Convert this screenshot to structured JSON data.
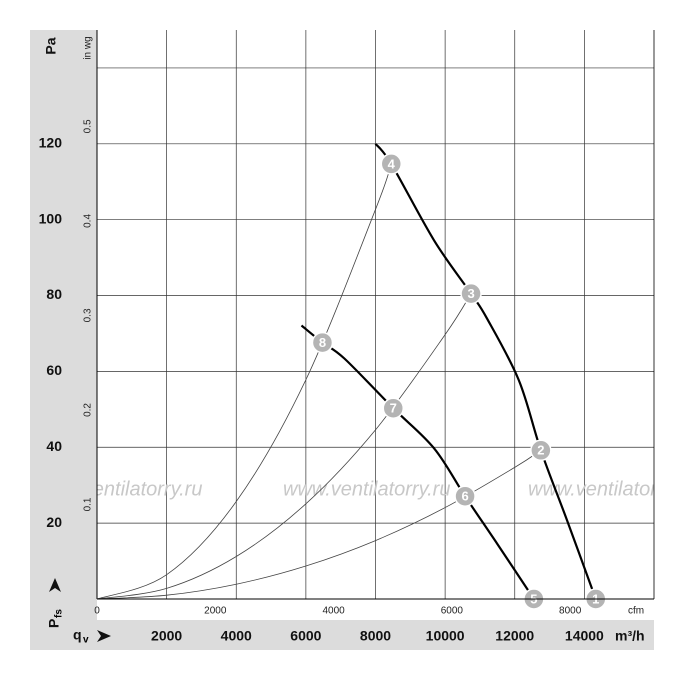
{
  "chart_data": {
    "type": "line",
    "y_label": {
      "main": "P",
      "sub": "fs"
    },
    "x_label": {
      "main": "q",
      "sub": "v"
    },
    "y_unit": "Pa",
    "y2_unit": "in wg",
    "x_unit": "m³/h",
    "x2_unit": "cfm",
    "watermark": "www.ventilatorry.ru",
    "xlim": [
      0,
      16000
    ],
    "xticks": [
      2000,
      4000,
      6000,
      8000,
      10000,
      12000,
      14000
    ],
    "ylim": [
      0,
      150
    ],
    "yticks": [
      20,
      40,
      60,
      80,
      100,
      120,
      {
        "value": 140,
        "label": null
      }
    ],
    "x2lim": [
      0,
      9417
    ],
    "x2ticks": [
      0,
      2000,
      4000,
      6000,
      8000
    ],
    "y2lim": [
      0,
      0.602
    ],
    "y2ticks": [
      0.1,
      0.2,
      0.3,
      0.4,
      0.5
    ],
    "grid": true,
    "series": [
      {
        "color": "#000000",
        "width": 2.2,
        "x": [
          8000,
          8453,
          9685,
          10745,
          11200,
          12120,
          12750,
          13500,
          14327
        ],
        "values": [
          120,
          114.7,
          94.5,
          80.5,
          74,
          57.6,
          39.2,
          20.8,
          0
        ]
      },
      {
        "color": "#000000",
        "width": 2.2,
        "x": [
          5874,
          6476,
          7106,
          8510,
          9685,
          10573,
          11500,
          12550
        ],
        "values": [
          72.1,
          67.6,
          63.4,
          50.3,
          39.7,
          27.1,
          14.5,
          0
        ]
      },
      {
        "color": "#444444",
        "width": 0.8,
        "x": [
          0,
          2000,
          4000,
          6000,
          8000,
          8453
        ],
        "values": [
          0,
          6.4,
          25.7,
          57.8,
          102.7,
          114.7
        ]
      },
      {
        "color": "#444444",
        "width": 0.8,
        "x": [
          0,
          2000,
          4000,
          6000,
          8000,
          10000,
          10745
        ],
        "values": [
          0,
          2.8,
          11.2,
          25.1,
          44.6,
          69.7,
          80.5
        ]
      },
      {
        "color": "#444444",
        "width": 0.8,
        "x": [
          0,
          2000,
          4000,
          6000,
          8000,
          10000,
          12000,
          12750
        ],
        "values": [
          0,
          1.0,
          3.9,
          8.7,
          15.4,
          24.1,
          34.7,
          39.2
        ]
      }
    ],
    "points": [
      {
        "label": "1",
        "x": 14327,
        "y": 0
      },
      {
        "label": "2",
        "x": 12750,
        "y": 39.2
      },
      {
        "label": "3",
        "x": 10745,
        "y": 80.5
      },
      {
        "label": "4",
        "x": 8453,
        "y": 114.7
      },
      {
        "label": "5",
        "x": 12550,
        "y": 0
      },
      {
        "label": "6",
        "x": 10573,
        "y": 27.1
      },
      {
        "label": "7",
        "x": 8510,
        "y": 50.3
      },
      {
        "label": "8",
        "x": 6476,
        "y": 67.6
      }
    ],
    "point_color": "#b4b4b4"
  }
}
